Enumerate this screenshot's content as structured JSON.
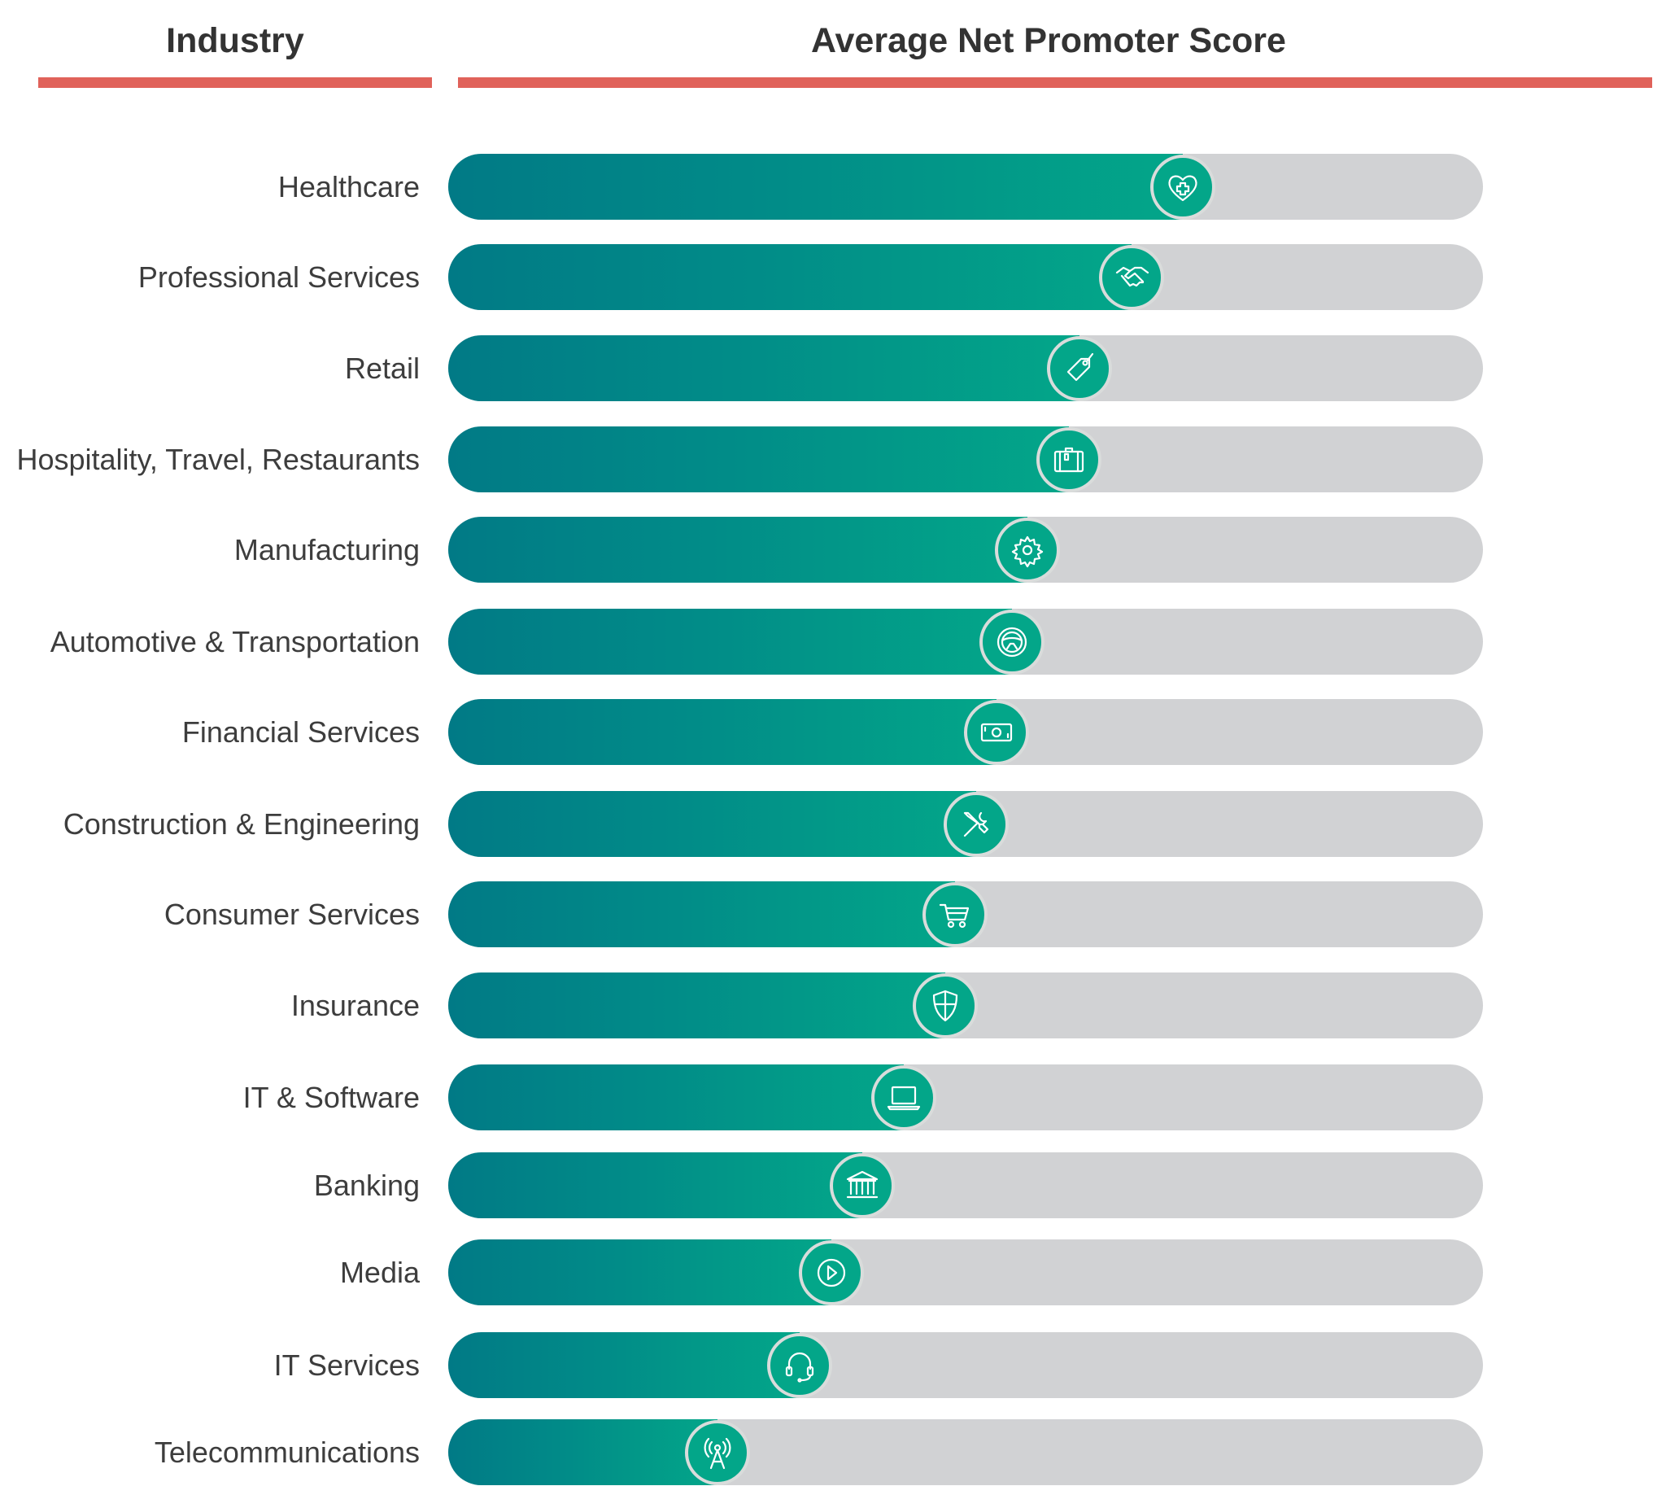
{
  "header": {
    "industry": "Industry",
    "score": "Average Net Promoter Score"
  },
  "colors": {
    "accent_rule": "#e0625a",
    "fill_start": "#017a86",
    "fill_end": "#03a689",
    "track": "#d1d2d4"
  },
  "chart_data": {
    "type": "bar",
    "orientation": "horizontal",
    "title": "Average Net Promoter Score",
    "xlabel": "",
    "ylabel": "Industry",
    "value_unit": "fraction of bar filled (no numeric scale printed)",
    "xlim": [
      0,
      1
    ],
    "grid": false,
    "categories": [
      "Healthcare",
      "Professional Services",
      "Retail",
      "Hospitality, Travel, Restaurants",
      "Manufacturing",
      "Automotive & Transportation",
      "Financial Services",
      "Construction & Engineering",
      "Consumer Services",
      "Insurance",
      "IT & Software",
      "Banking",
      "Media",
      "IT Services",
      "Telecommunications"
    ],
    "values": [
      0.71,
      0.66,
      0.61,
      0.6,
      0.56,
      0.545,
      0.53,
      0.51,
      0.49,
      0.48,
      0.44,
      0.4,
      0.37,
      0.34,
      0.26
    ],
    "icons": [
      "heart-cross-icon",
      "handshake-icon",
      "price-tag-icon",
      "suitcase-icon",
      "gear-icon",
      "steering-wheel-icon",
      "banknote-icon",
      "tools-icon",
      "shopping-cart-icon",
      "shield-icon",
      "laptop-icon",
      "bank-building-icon",
      "play-icon",
      "headset-icon",
      "antenna-icon"
    ]
  }
}
